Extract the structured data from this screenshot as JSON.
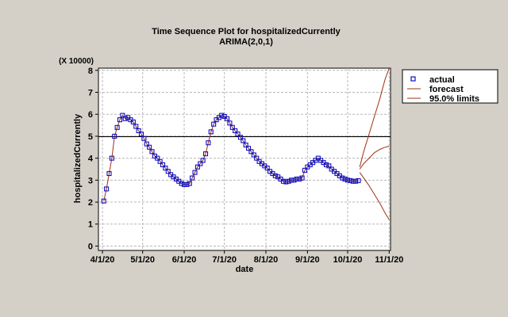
{
  "chart_data": {
    "type": "line",
    "title": "Time Sequence Plot for hospitalizedCurrently",
    "subtitle": "ARIMA(2,0,1)",
    "xlabel": "date",
    "ylabel": "hospitalizedCurrently",
    "y_multiplier_label": "(X 10000)",
    "x_ticks": [
      "4/1/20",
      "5/1/20",
      "6/1/20",
      "7/1/20",
      "8/1/20",
      "9/1/20",
      "10/1/20",
      "11/1/20"
    ],
    "y_ticks": [
      "0",
      "1",
      "2",
      "3",
      "4",
      "5",
      "6",
      "7",
      "8"
    ],
    "ylim": [
      -0.2,
      8.1
    ],
    "xlim_days": [
      -3,
      215
    ],
    "grid": true,
    "mean_line": 4.98,
    "legend": {
      "position": "right",
      "entries": [
        {
          "label": "actual",
          "marker": "square",
          "color": "#1010c0"
        },
        {
          "label": "forecast",
          "color": "#a03010"
        },
        {
          "label": "95.0% limits",
          "color": "#a03010"
        }
      ]
    },
    "series": [
      {
        "name": "actual",
        "x_days": [
          1,
          3,
          5,
          7,
          9,
          11,
          13,
          15,
          17,
          19,
          21,
          23,
          25,
          27,
          29,
          31,
          33,
          35,
          37,
          39,
          41,
          43,
          45,
          47,
          49,
          51,
          53,
          55,
          57,
          59,
          61,
          63,
          65,
          67,
          69,
          71,
          73,
          75,
          77,
          79,
          81,
          83,
          85,
          87,
          89,
          91,
          93,
          95,
          97,
          99,
          101,
          103,
          105,
          107,
          109,
          111,
          113,
          115,
          117,
          119,
          121,
          123,
          125,
          127,
          129,
          131,
          133,
          135,
          137,
          139,
          141,
          143,
          145,
          147,
          149,
          151,
          153,
          155,
          157,
          159,
          161,
          163,
          165,
          167,
          169,
          171,
          173,
          175,
          177,
          179,
          181,
          183,
          185,
          187,
          189,
          191
        ],
        "values": [
          2.05,
          2.6,
          3.3,
          4.0,
          5.0,
          5.4,
          5.75,
          5.95,
          5.8,
          5.85,
          5.75,
          5.65,
          5.45,
          5.25,
          5.1,
          4.9,
          4.65,
          4.5,
          4.3,
          4.1,
          4.0,
          3.85,
          3.7,
          3.55,
          3.4,
          3.25,
          3.15,
          3.05,
          2.95,
          2.85,
          2.8,
          2.8,
          2.85,
          3.1,
          3.35,
          3.6,
          3.75,
          3.9,
          4.2,
          4.7,
          5.2,
          5.55,
          5.75,
          5.85,
          5.95,
          5.9,
          5.8,
          5.6,
          5.4,
          5.25,
          5.1,
          4.95,
          4.8,
          4.6,
          4.45,
          4.3,
          4.15,
          4.0,
          3.85,
          3.75,
          3.65,
          3.55,
          3.4,
          3.3,
          3.2,
          3.15,
          3.05,
          2.95,
          2.92,
          2.95,
          3.0,
          3.0,
          3.05,
          3.05,
          3.1,
          3.45,
          3.6,
          3.7,
          3.8,
          3.9,
          4.0,
          3.9,
          3.8,
          3.7,
          3.65,
          3.5,
          3.4,
          3.3,
          3.2,
          3.1,
          3.05,
          3.0,
          2.98,
          2.95,
          2.95,
          2.98
        ]
      },
      {
        "name": "forecast",
        "x_days": [
          192,
          195,
          199,
          203,
          207,
          211,
          214
        ],
        "values": [
          3.5,
          3.75,
          4.0,
          4.25,
          4.4,
          4.5,
          4.55
        ]
      },
      {
        "name": "95.0% limits",
        "upper": {
          "x_days": [
            192,
            195,
            199,
            203,
            207,
            211,
            214
          ],
          "values": [
            3.6,
            4.3,
            5.1,
            5.9,
            6.7,
            7.6,
            8.1
          ]
        },
        "lower": {
          "x_days": [
            192,
            195,
            199,
            203,
            207,
            211,
            214
          ],
          "values": [
            3.35,
            3.1,
            2.75,
            2.35,
            1.95,
            1.5,
            1.2
          ]
        }
      }
    ]
  }
}
